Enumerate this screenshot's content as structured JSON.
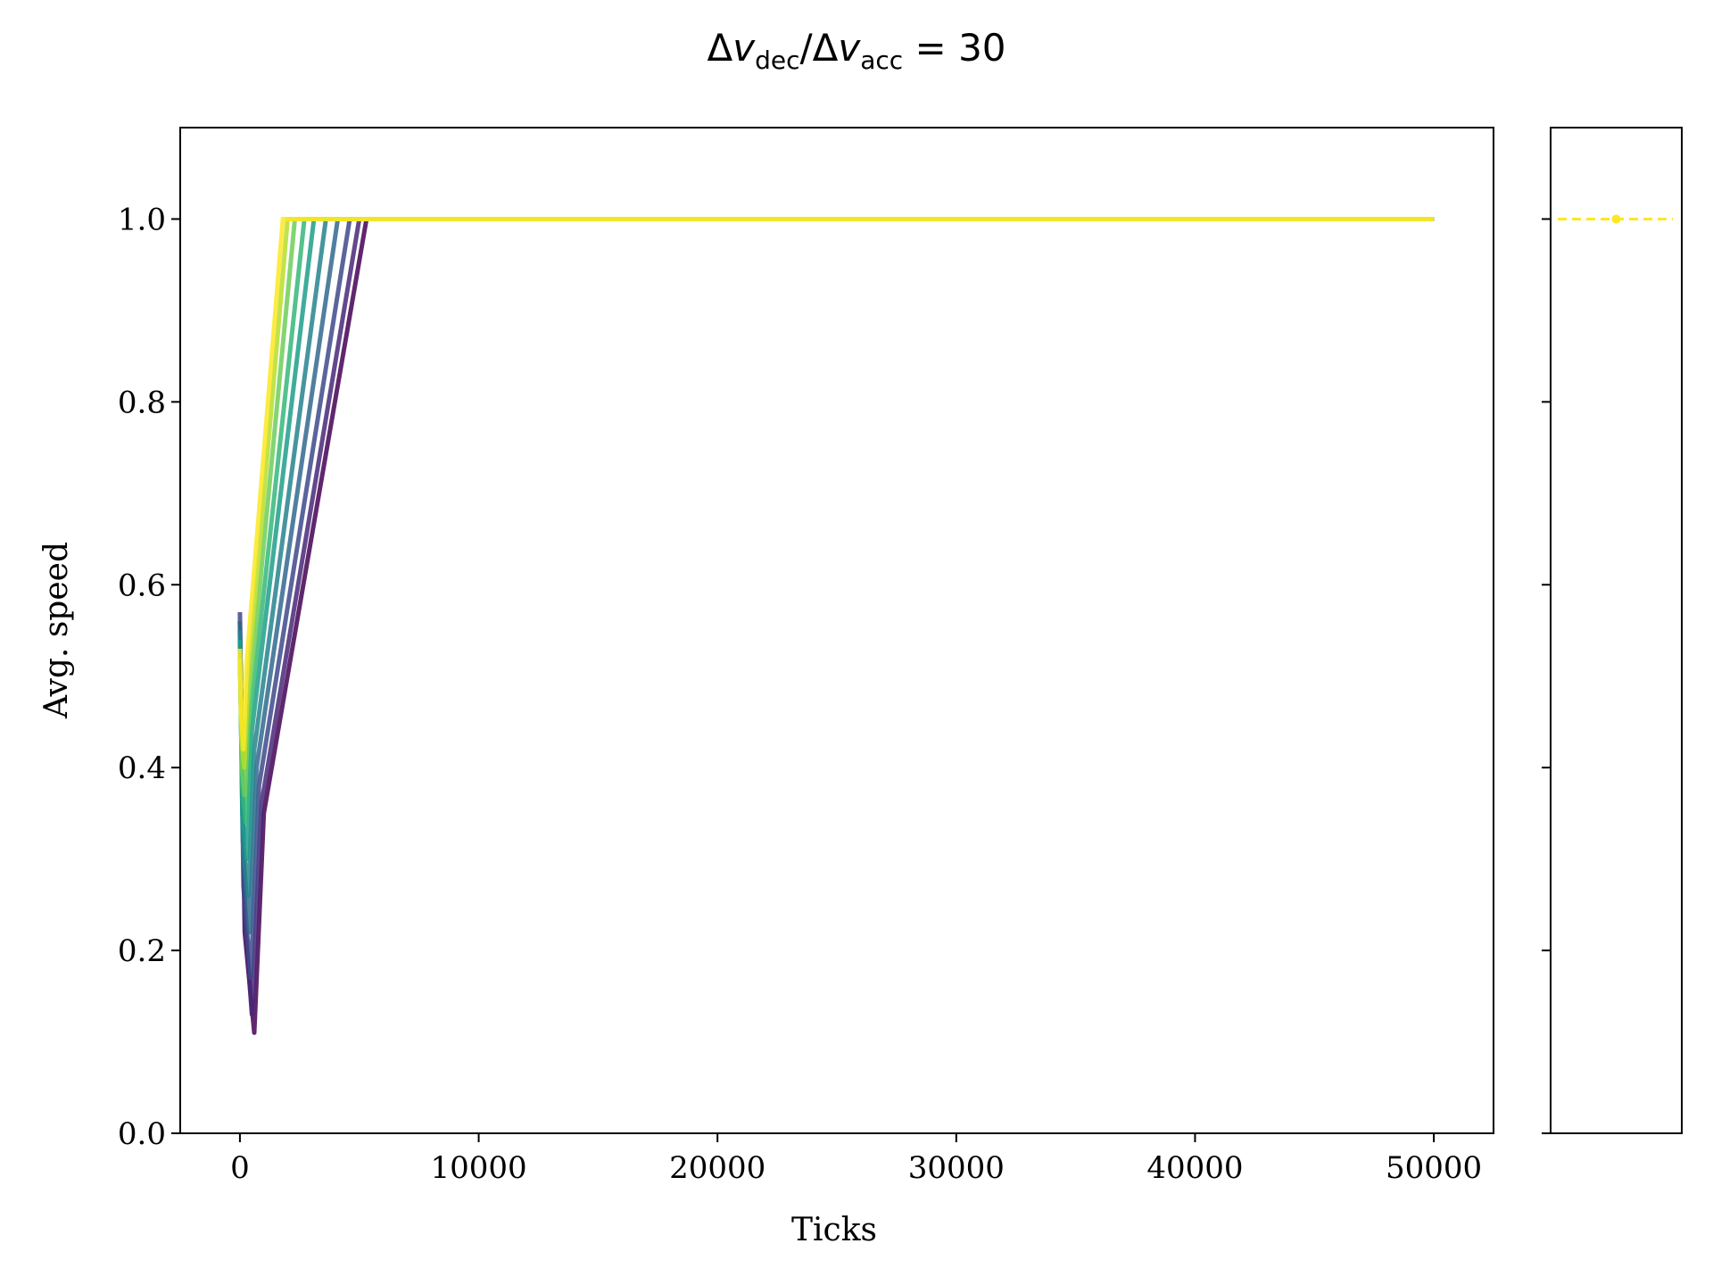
{
  "chart_data": [
    {
      "type": "line",
      "title_parts": {
        "delta1": "Δ",
        "v1": "v",
        "sub1": "dec",
        "slash": "/",
        "delta2": "Δ",
        "v2": "v",
        "sub2": "acc",
        "rest": " = 30"
      },
      "xlabel": "Ticks",
      "ylabel": "Avg. speed",
      "xlim": [
        -2500,
        52500
      ],
      "ylim": [
        0.0,
        1.1
      ],
      "x_ticks": [
        0,
        10000,
        20000,
        30000,
        40000,
        50000
      ],
      "x_tick_labels": [
        "0",
        "10000",
        "20000",
        "30000",
        "40000",
        "50000"
      ],
      "y_ticks": [
        0.0,
        0.2,
        0.4,
        0.6,
        0.8,
        1.0
      ],
      "y_tick_labels": [
        "0.0",
        "0.2",
        "0.4",
        "0.6",
        "0.8",
        "1.0"
      ],
      "colormap": "viridis",
      "colors": [
        "#440154",
        "#482878",
        "#3e4989",
        "#31688e",
        "#26828e",
        "#1f9e89",
        "#35b779",
        "#6ece58",
        "#b5de2b",
        "#fde725"
      ],
      "series": [
        {
          "x": [
            0,
            200,
            600,
            1000,
            5300,
            50000
          ],
          "y": [
            0.56,
            0.22,
            0.11,
            0.35,
            1.0,
            1.0
          ]
        },
        {
          "x": [
            0,
            200,
            500,
            900,
            5000,
            50000
          ],
          "y": [
            0.55,
            0.24,
            0.13,
            0.36,
            1.0,
            1.0
          ]
        },
        {
          "x": [
            0,
            150,
            450,
            800,
            4600,
            50000
          ],
          "y": [
            0.57,
            0.27,
            0.17,
            0.38,
            1.0,
            1.0
          ]
        },
        {
          "x": [
            0,
            150,
            400,
            700,
            4100,
            50000
          ],
          "y": [
            0.56,
            0.3,
            0.22,
            0.4,
            1.0,
            1.0
          ]
        },
        {
          "x": [
            0,
            120,
            350,
            600,
            3600,
            50000
          ],
          "y": [
            0.55,
            0.32,
            0.26,
            0.42,
            1.0,
            1.0
          ]
        },
        {
          "x": [
            0,
            100,
            300,
            500,
            3100,
            50000
          ],
          "y": [
            0.54,
            0.35,
            0.3,
            0.44,
            1.0,
            1.0
          ]
        },
        {
          "x": [
            0,
            100,
            250,
            450,
            2700,
            50000
          ],
          "y": [
            0.53,
            0.38,
            0.34,
            0.46,
            1.0,
            1.0
          ]
        },
        {
          "x": [
            0,
            80,
            200,
            400,
            2300,
            50000
          ],
          "y": [
            0.52,
            0.4,
            0.37,
            0.48,
            1.0,
            1.0
          ]
        },
        {
          "x": [
            0,
            70,
            180,
            350,
            2000,
            50000
          ],
          "y": [
            0.52,
            0.43,
            0.4,
            0.5,
            1.0,
            1.0
          ]
        },
        {
          "x": [
            0,
            50,
            150,
            300,
            1800,
            50000
          ],
          "y": [
            0.53,
            0.46,
            0.42,
            0.52,
            1.0,
            1.0
          ]
        }
      ]
    },
    {
      "type": "scatter",
      "y": 1.0,
      "line_style": "dashed",
      "color": "#fde725"
    }
  ]
}
